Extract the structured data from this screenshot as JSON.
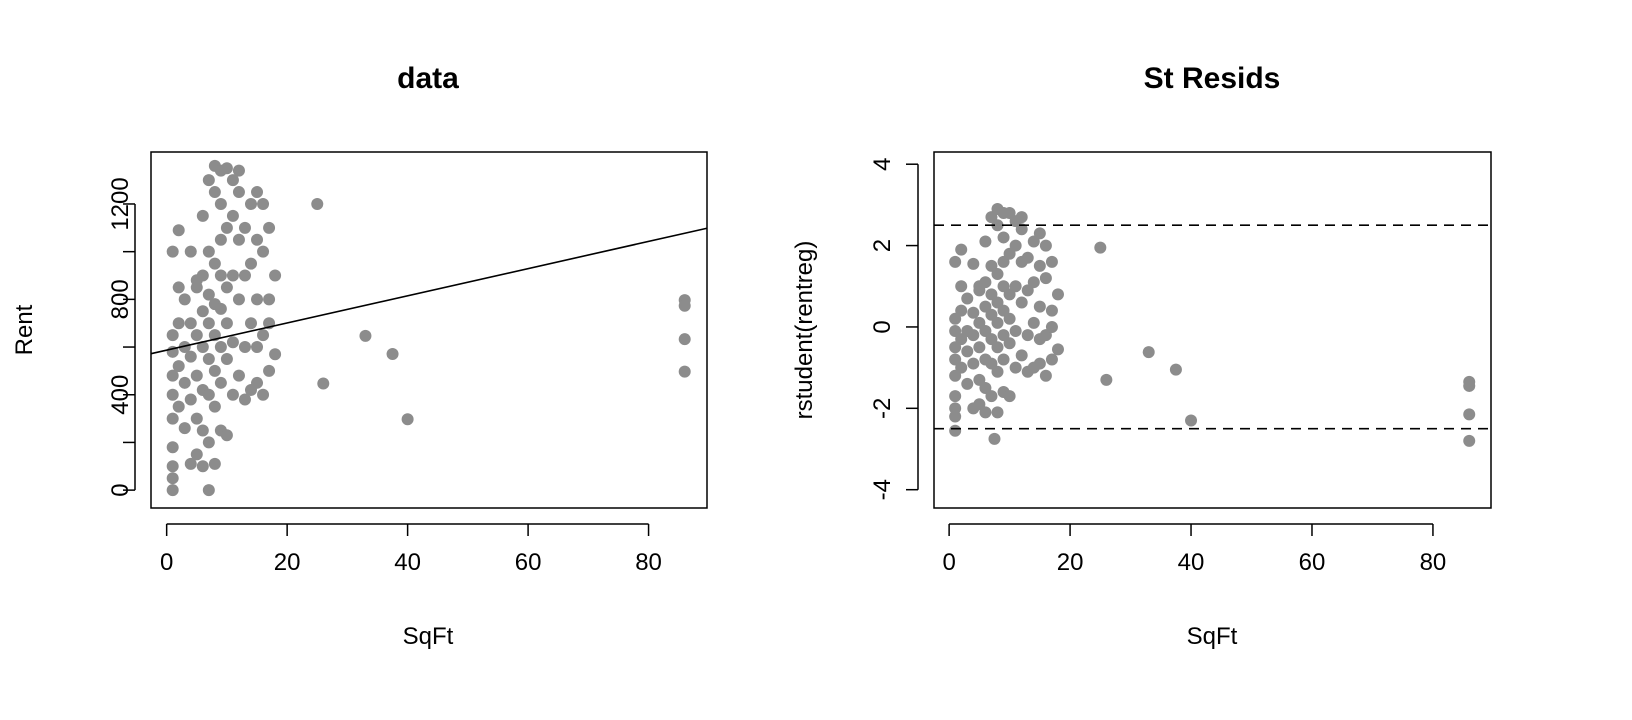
{
  "chart_data": [
    {
      "type": "scatter",
      "title": "data",
      "xlabel": "SqFt",
      "ylabel": "Rent",
      "xlim": [
        -2.6,
        89.7
      ],
      "ylim": [
        -75,
        1418
      ],
      "xticks": [
        0,
        20,
        40,
        60,
        80
      ],
      "yticks": [
        0,
        400,
        800,
        1200
      ],
      "point_color": "#8c8c8c",
      "regression_line": {
        "intercept": 587,
        "slope": 5.7,
        "color": "#000000"
      },
      "points": [
        [
          1,
          0
        ],
        [
          1,
          50
        ],
        [
          1,
          100
        ],
        [
          1,
          180
        ],
        [
          1,
          300
        ],
        [
          1,
          400
        ],
        [
          1,
          480
        ],
        [
          1,
          580
        ],
        [
          1,
          650
        ],
        [
          1,
          1000
        ],
        [
          2,
          850
        ],
        [
          2,
          1090
        ],
        [
          2,
          700
        ],
        [
          2,
          520
        ],
        [
          2,
          350
        ],
        [
          3,
          600
        ],
        [
          3,
          800
        ],
        [
          3,
          450
        ],
        [
          3,
          260
        ],
        [
          4,
          110
        ],
        [
          4,
          1000
        ],
        [
          4,
          700
        ],
        [
          4,
          380
        ],
        [
          4,
          560
        ],
        [
          5,
          850
        ],
        [
          5,
          650
        ],
        [
          5,
          480
        ],
        [
          5,
          300
        ],
        [
          5,
          150
        ],
        [
          5,
          880
        ],
        [
          6,
          1150
        ],
        [
          6,
          900
        ],
        [
          6,
          750
        ],
        [
          6,
          600
        ],
        [
          6,
          420
        ],
        [
          6,
          250
        ],
        [
          6,
          100
        ],
        [
          7,
          1300
        ],
        [
          7,
          1000
        ],
        [
          7,
          820
        ],
        [
          7,
          700
        ],
        [
          7,
          550
        ],
        [
          7,
          400
        ],
        [
          7,
          200
        ],
        [
          7,
          0
        ],
        [
          8,
          1360
        ],
        [
          8,
          1250
        ],
        [
          8,
          950
        ],
        [
          8,
          780
        ],
        [
          8,
          650
        ],
        [
          8,
          500
        ],
        [
          8,
          350
        ],
        [
          8,
          110
        ],
        [
          9,
          1340
        ],
        [
          9,
          1200
        ],
        [
          9,
          1050
        ],
        [
          9,
          900
        ],
        [
          9,
          760
        ],
        [
          9,
          600
        ],
        [
          9,
          450
        ],
        [
          9,
          250
        ],
        [
          10,
          1350
        ],
        [
          10,
          1100
        ],
        [
          10,
          850
        ],
        [
          10,
          700
        ],
        [
          10,
          550
        ],
        [
          10,
          230
        ],
        [
          11,
          1300
        ],
        [
          11,
          1150
        ],
        [
          11,
          900
        ],
        [
          11,
          620
        ],
        [
          11,
          400
        ],
        [
          12,
          1340
        ],
        [
          12,
          1250
        ],
        [
          12,
          1050
        ],
        [
          12,
          800
        ],
        [
          12,
          480
        ],
        [
          13,
          1100
        ],
        [
          13,
          900
        ],
        [
          13,
          600
        ],
        [
          13,
          380
        ],
        [
          14,
          1200
        ],
        [
          14,
          950
        ],
        [
          14,
          700
        ],
        [
          14,
          420
        ],
        [
          15,
          1250
        ],
        [
          15,
          1050
        ],
        [
          15,
          800
        ],
        [
          15,
          600
        ],
        [
          15,
          450
        ],
        [
          16,
          1200
        ],
        [
          16,
          1000
        ],
        [
          16,
          650
        ],
        [
          16,
          400
        ],
        [
          17,
          1100
        ],
        [
          17,
          800
        ],
        [
          17,
          500
        ],
        [
          17,
          700
        ],
        [
          18,
          900
        ],
        [
          18,
          570
        ],
        [
          25,
          1200
        ],
        [
          26,
          447
        ],
        [
          33,
          647
        ],
        [
          37.5,
          571
        ],
        [
          40,
          297
        ],
        [
          86,
          797
        ],
        [
          86,
          773
        ],
        [
          86,
          633
        ],
        [
          86,
          497
        ]
      ]
    },
    {
      "type": "scatter",
      "title": "St Resids",
      "xlabel": "SqFt",
      "ylabel": "rstudent(rentreg)",
      "xlim": [
        -2.5,
        89.6
      ],
      "ylim": [
        -4.45,
        4.3
      ],
      "xticks": [
        0,
        20,
        40,
        60,
        80
      ],
      "yticks": [
        -4,
        -2,
        0,
        2,
        4
      ],
      "point_color": "#8c8c8c",
      "reference_lines": [
        2.5,
        -2.5
      ],
      "points": [
        [
          1,
          -2.55
        ],
        [
          1,
          -2.2
        ],
        [
          1,
          -2.0
        ],
        [
          1,
          -1.7
        ],
        [
          1,
          -1.2
        ],
        [
          1,
          -0.8
        ],
        [
          1,
          -0.5
        ],
        [
          1,
          -0.1
        ],
        [
          1,
          0.2
        ],
        [
          1,
          1.6
        ],
        [
          2,
          1.0
        ],
        [
          2,
          1.9
        ],
        [
          2,
          0.4
        ],
        [
          2,
          -0.3
        ],
        [
          2,
          -1.0
        ],
        [
          3,
          -0.1
        ],
        [
          3,
          0.7
        ],
        [
          3,
          -0.6
        ],
        [
          3,
          -1.4
        ],
        [
          4,
          -2.0
        ],
        [
          4,
          1.55
        ],
        [
          4,
          0.35
        ],
        [
          4,
          -0.9
        ],
        [
          4,
          -0.2
        ],
        [
          5,
          0.9
        ],
        [
          5,
          0.1
        ],
        [
          5,
          -0.5
        ],
        [
          5,
          -1.3
        ],
        [
          5,
          -1.9
        ],
        [
          5,
          1.0
        ],
        [
          6,
          2.1
        ],
        [
          6,
          1.1
        ],
        [
          6,
          0.5
        ],
        [
          6,
          -0.1
        ],
        [
          6,
          -0.8
        ],
        [
          6,
          -1.5
        ],
        [
          6,
          -2.1
        ],
        [
          7,
          2.7
        ],
        [
          7,
          1.5
        ],
        [
          7,
          0.8
        ],
        [
          7,
          0.3
        ],
        [
          7,
          -0.3
        ],
        [
          7,
          -0.9
        ],
        [
          7,
          -1.7
        ],
        [
          7.5,
          -2.75
        ],
        [
          8,
          2.9
        ],
        [
          8,
          2.5
        ],
        [
          8,
          1.3
        ],
        [
          8,
          0.6
        ],
        [
          8,
          0.1
        ],
        [
          8,
          -0.5
        ],
        [
          8,
          -1.1
        ],
        [
          8,
          -2.1
        ],
        [
          9,
          2.8
        ],
        [
          9,
          2.2
        ],
        [
          9,
          1.6
        ],
        [
          9,
          1.0
        ],
        [
          9,
          0.4
        ],
        [
          9,
          -0.2
        ],
        [
          9,
          -0.8
        ],
        [
          9,
          -1.6
        ],
        [
          10,
          2.8
        ],
        [
          10,
          1.8
        ],
        [
          10,
          0.8
        ],
        [
          10,
          0.2
        ],
        [
          10,
          -0.4
        ],
        [
          10,
          -1.7
        ],
        [
          11,
          2.6
        ],
        [
          11,
          2.0
        ],
        [
          11,
          1.0
        ],
        [
          11,
          -0.1
        ],
        [
          11,
          -1.0
        ],
        [
          12,
          2.7
        ],
        [
          12,
          2.4
        ],
        [
          12,
          1.6
        ],
        [
          12,
          0.6
        ],
        [
          12,
          -0.7
        ],
        [
          13,
          1.7
        ],
        [
          13,
          0.9
        ],
        [
          13,
          -0.2
        ],
        [
          13,
          -1.1
        ],
        [
          14,
          2.1
        ],
        [
          14,
          1.1
        ],
        [
          14,
          0.1
        ],
        [
          14,
          -1.0
        ],
        [
          15,
          2.3
        ],
        [
          15,
          1.5
        ],
        [
          15,
          0.5
        ],
        [
          15,
          -0.3
        ],
        [
          15,
          -0.9
        ],
        [
          16,
          2.0
        ],
        [
          16,
          1.2
        ],
        [
          16,
          -0.2
        ],
        [
          16,
          -1.2
        ],
        [
          17,
          1.6
        ],
        [
          17,
          0.4
        ],
        [
          17,
          -0.8
        ],
        [
          17,
          0.0
        ],
        [
          18,
          0.8
        ],
        [
          18,
          -0.55
        ],
        [
          25,
          1.95
        ],
        [
          26,
          -1.3
        ],
        [
          33,
          -0.62
        ],
        [
          37.5,
          -1.05
        ],
        [
          40,
          -2.3
        ],
        [
          86,
          -1.35
        ],
        [
          86,
          -1.45
        ],
        [
          86,
          -2.15
        ],
        [
          86,
          -2.8
        ]
      ]
    }
  ]
}
